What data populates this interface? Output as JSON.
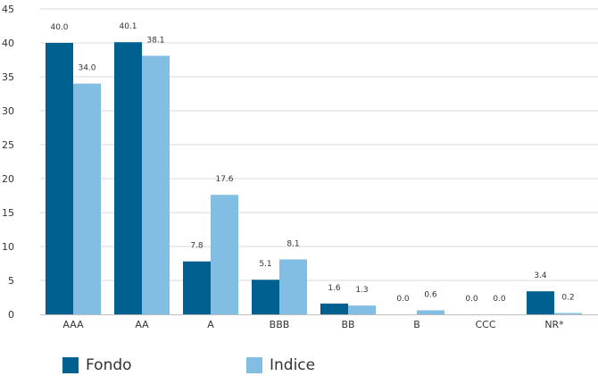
{
  "chart_data": {
    "type": "bar",
    "categories": [
      "AAA",
      "AA",
      "A",
      "BBB",
      "BB",
      "B",
      "CCC",
      "NR*"
    ],
    "series": [
      {
        "name": "Fondo",
        "values": [
          40.0,
          40.1,
          7.8,
          5.1,
          1.6,
          0.0,
          0.0,
          3.4
        ],
        "color": "#00608f"
      },
      {
        "name": "Indice",
        "values": [
          34.0,
          38.1,
          17.6,
          8.1,
          1.3,
          0.6,
          0.0,
          0.2
        ],
        "color": "#82bde3"
      }
    ],
    "ylim": [
      0,
      45
    ],
    "yticks": [
      0,
      5,
      10,
      15,
      20,
      25,
      30,
      35,
      40,
      45
    ],
    "grid": true,
    "legend_position": "bottom-left"
  }
}
